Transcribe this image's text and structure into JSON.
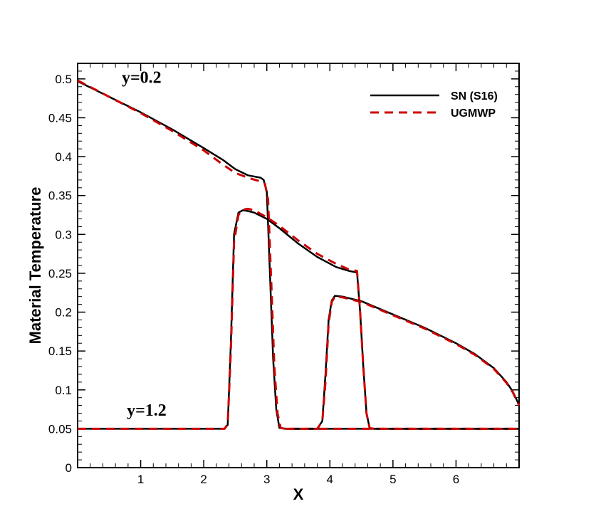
{
  "chart_data": {
    "type": "line",
    "title": "",
    "xlabel": "X",
    "ylabel": "Material Temperature",
    "xlim": [
      0,
      7
    ],
    "ylim": [
      0,
      0.52
    ],
    "x_ticks": [
      1,
      2,
      3,
      4,
      5,
      6
    ],
    "y_ticks": [
      0,
      0.05,
      0.1,
      0.15,
      0.2,
      0.25,
      0.3,
      0.35,
      0.4,
      0.45,
      0.5
    ],
    "y_tick_labels": [
      "0",
      "0.05",
      "0.1",
      "0.15",
      "0.2",
      "0.25",
      "0.3",
      "0.35",
      "0.4",
      "0.45",
      "0.5"
    ],
    "grid": false,
    "legend_position": "top-right",
    "legend": [
      {
        "name": "SN (S16)",
        "color": "#000000",
        "style": "solid"
      },
      {
        "name": "UGMWP",
        "color": "#cc0000",
        "style": "dashed"
      }
    ],
    "annotations": [
      {
        "text": "y=0.2",
        "x": 0.7,
        "y": 0.495
      },
      {
        "text": "y=1.2",
        "x": 0.78,
        "y": 0.067
      }
    ],
    "series": [
      {
        "name": "SN (S16)",
        "curve": "y=0.2",
        "color": "#000000",
        "style": "solid",
        "x": [
          0,
          0.5,
          1.0,
          1.5,
          2.0,
          2.3,
          2.5,
          2.7,
          2.9,
          2.95,
          3.0,
          3.05,
          3.1,
          3.15,
          3.2,
          3.3,
          4.0,
          5.0,
          6.0,
          7.0
        ],
        "y": [
          0.497,
          0.477,
          0.457,
          0.435,
          0.411,
          0.396,
          0.384,
          0.376,
          0.373,
          0.37,
          0.355,
          0.25,
          0.14,
          0.075,
          0.051,
          0.05,
          0.05,
          0.05,
          0.05,
          0.05
        ]
      },
      {
        "name": "UGMWP",
        "curve": "y=0.2",
        "color": "#cc0000",
        "style": "dashed",
        "x": [
          0,
          0.5,
          1.0,
          1.5,
          2.0,
          2.3,
          2.5,
          2.7,
          2.9,
          2.97,
          3.02,
          3.07,
          3.12,
          3.17,
          3.22,
          3.3,
          4.0,
          5.0,
          6.0,
          7.0
        ],
        "y": [
          0.498,
          0.477,
          0.456,
          0.433,
          0.408,
          0.39,
          0.379,
          0.373,
          0.368,
          0.365,
          0.345,
          0.24,
          0.13,
          0.07,
          0.051,
          0.05,
          0.05,
          0.05,
          0.05,
          0.05
        ]
      },
      {
        "name": "SN (S16)",
        "curve": "y=1.2",
        "color": "#000000",
        "style": "solid",
        "x": [
          0,
          1.0,
          2.0,
          2.33,
          2.38,
          2.43,
          2.48,
          2.55,
          2.62,
          2.7,
          2.8,
          3.0,
          3.2,
          3.5,
          3.8,
          4.1,
          4.3,
          4.43,
          4.48,
          4.53,
          4.58,
          4.63,
          4.7,
          5.0,
          6.0,
          7.0
        ],
        "y": [
          0.05,
          0.05,
          0.05,
          0.05,
          0.055,
          0.16,
          0.3,
          0.328,
          0.331,
          0.33,
          0.328,
          0.32,
          0.308,
          0.288,
          0.271,
          0.258,
          0.253,
          0.251,
          0.2,
          0.13,
          0.07,
          0.051,
          0.05,
          0.05,
          0.05,
          0.05
        ]
      },
      {
        "name": "UGMWP",
        "curve": "y=1.2",
        "color": "#cc0000",
        "style": "dashed",
        "x": [
          0,
          1.0,
          2.0,
          2.33,
          2.38,
          2.43,
          2.48,
          2.55,
          2.62,
          2.7,
          2.8,
          3.0,
          3.2,
          3.5,
          3.8,
          4.1,
          4.3,
          4.43,
          4.48,
          4.53,
          4.58,
          4.63,
          4.7,
          5.0,
          6.0,
          7.0
        ],
        "y": [
          0.05,
          0.05,
          0.05,
          0.05,
          0.056,
          0.15,
          0.29,
          0.325,
          0.332,
          0.333,
          0.331,
          0.322,
          0.311,
          0.292,
          0.275,
          0.262,
          0.255,
          0.253,
          0.2,
          0.13,
          0.07,
          0.051,
          0.05,
          0.05,
          0.05,
          0.05
        ]
      },
      {
        "name": "SN (S16)",
        "curve": "y=1.2 second pulse",
        "color": "#000000",
        "style": "solid",
        "x": [
          3.3,
          3.8,
          3.88,
          3.93,
          3.98,
          4.03,
          4.08,
          4.2,
          4.5,
          5.0,
          5.5,
          6.0,
          6.3,
          6.6,
          6.8,
          6.9,
          6.97,
          7.0
        ],
        "y": [
          0.05,
          0.05,
          0.06,
          0.12,
          0.19,
          0.215,
          0.221,
          0.22,
          0.214,
          0.197,
          0.18,
          0.16,
          0.146,
          0.128,
          0.11,
          0.098,
          0.086,
          0.08
        ]
      },
      {
        "name": "UGMWP",
        "curve": "y=1.2 second pulse",
        "color": "#cc0000",
        "style": "dashed",
        "x": [
          3.3,
          3.8,
          3.88,
          3.93,
          3.98,
          4.03,
          4.08,
          4.2,
          4.5,
          5.0,
          5.5,
          6.0,
          6.3,
          6.6,
          6.8,
          6.9,
          6.97,
          7.0
        ],
        "y": [
          0.05,
          0.05,
          0.06,
          0.11,
          0.185,
          0.213,
          0.22,
          0.219,
          0.213,
          0.196,
          0.179,
          0.159,
          0.145,
          0.127,
          0.109,
          0.097,
          0.085,
          0.08
        ]
      }
    ]
  }
}
